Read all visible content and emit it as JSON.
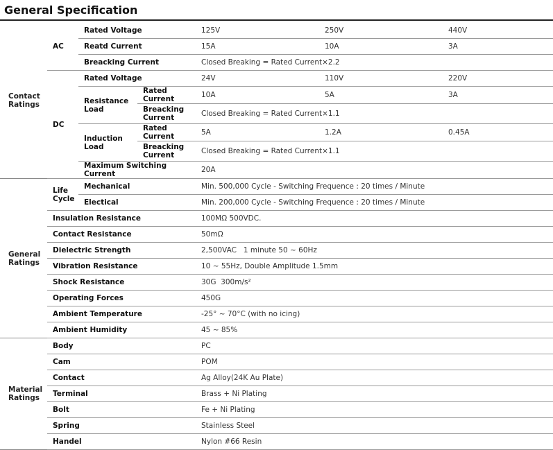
{
  "title": "General Specification",
  "contact": {
    "group": "Contact Ratings",
    "ac": {
      "label": "AC",
      "rated_voltage": {
        "label": "Rated Voltage",
        "values": [
          "125V",
          "250V",
          "440V"
        ]
      },
      "rated_current": {
        "label": "Reatd Current",
        "values": [
          "15A",
          "10A",
          "3A"
        ]
      },
      "breaking": {
        "label": "Breacking Current",
        "value": "Closed Breaking = Rated Current×2.2"
      }
    },
    "dc": {
      "label": "DC",
      "rated_voltage": {
        "label": "Rated Voltage",
        "values": [
          "24V",
          "110V",
          "220V"
        ]
      },
      "resistance": {
        "label": "Resistance Load",
        "rated_current": {
          "label": "Rated Current",
          "values": [
            "10A",
            "5A",
            "3A"
          ]
        },
        "breaking": {
          "label": "Breacking Current",
          "value": "Closed Breaking = Rated Current×1.1"
        }
      },
      "induction": {
        "label": "Induction Load",
        "rated_current": {
          "label": "Rated Current",
          "values": [
            "5A",
            "1.2A",
            "0.45A"
          ]
        },
        "breaking": {
          "label": "Breacking Current",
          "value": "Closed Breaking = Rated Current×1.1"
        }
      },
      "max_switching": {
        "label": "Maximum Switching Current",
        "value": "20A"
      }
    }
  },
  "general": {
    "group": "General Ratings",
    "life_cycle": "Life Cycle",
    "mechanical": {
      "label": "Mechanical",
      "value": "Min. 500,000 Cycle - Switching Frequence : 20 times / Minute"
    },
    "electrical": {
      "label": "Electical",
      "value": "Min. 200,000 Cycle - Switching Frequence : 20 times / Minute"
    },
    "rows": [
      {
        "label": "Insulation Resistance",
        "value": "100MΩ 500VDC."
      },
      {
        "label": "Contact Resistance",
        "value": "50mΩ"
      },
      {
        "label": "Dielectric Strength",
        "value": "2,500VAC   1 minute 50 ~ 60Hz"
      },
      {
        "label": "Vibration Resistance",
        "value": "10 ~ 55Hz, Double Amplitude 1.5mm"
      },
      {
        "label": "Shock Resistance",
        "value": "30G  300m/s²"
      },
      {
        "label": "Operating Forces",
        "value": "450G"
      },
      {
        "label": "Ambient Temperature",
        "value": "-25° ~ 70°C (with no icing)"
      },
      {
        "label": "Ambient Humidity",
        "value": "45 ~ 85%"
      }
    ]
  },
  "material": {
    "group": "Material Ratings",
    "rows": [
      {
        "label": "Body",
        "value": "PC"
      },
      {
        "label": "Cam",
        "value": "POM"
      },
      {
        "label": "Contact",
        "value": "Ag Alloy(24K Au Plate)"
      },
      {
        "label": "Terminal",
        "value": "Brass + Ni Plating"
      },
      {
        "label": "Bolt",
        "value": "Fe + Ni Plating"
      },
      {
        "label": "Spring",
        "value": "Stainless Steel"
      },
      {
        "label": "Handel",
        "value": "Nylon #66 Resin"
      }
    ]
  }
}
